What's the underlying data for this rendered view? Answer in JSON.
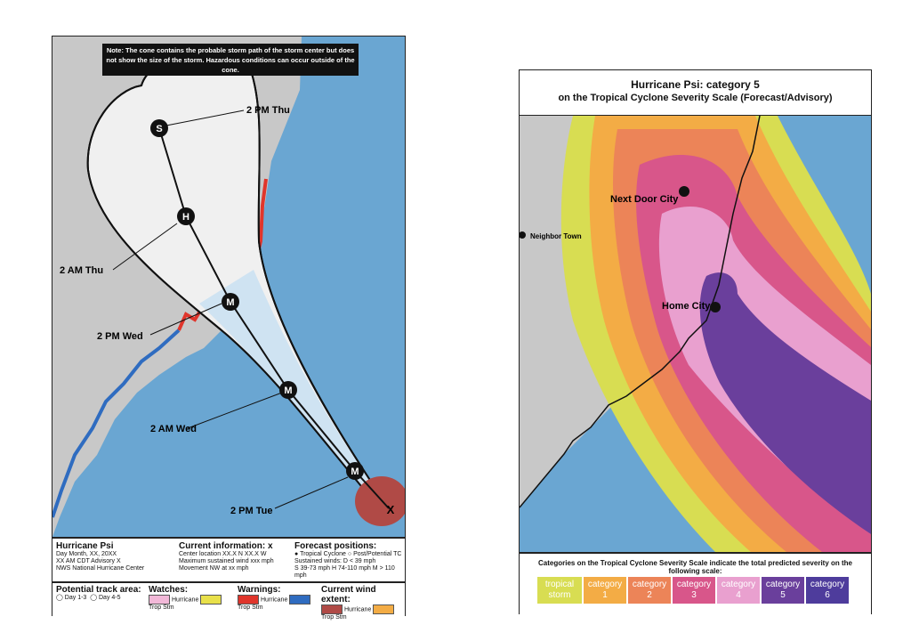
{
  "left_map": {
    "note": "Note: The cone contains the probable storm path of the storm center but does not show the size of the storm. Hazardous conditions can occur outside of the cone.",
    "track_labels": [
      "2 PM Thu",
      "2 AM Thu",
      "2 PM Wed",
      "2 AM Wed",
      "2 PM Tue"
    ],
    "storm_markers": [
      "S",
      "H",
      "M",
      "M",
      "M"
    ],
    "current_position_marker": "X",
    "legend": {
      "storm_name": "Hurricane Psi",
      "advisory_lines": [
        "Day Month, XX, 20XX",
        "XX AM CDT Advisory X",
        "NWS National Hurricane Center"
      ],
      "current_info_title": "Current information: x",
      "current_info_lines": [
        "Center location XX.X N XX.X W",
        "Maximum sustained wind xxx mph",
        "Movement NW at xx mph"
      ],
      "forecast_title": "Forecast positions:",
      "forecast_items": [
        "Tropical Cyclone",
        "Post/Potential TC"
      ],
      "forecast_lines": [
        "Sustained winds:    D < 39 mph",
        "S 39-73 mph  H 74-110 mph  M > 110 mph"
      ],
      "track_area_title": "Potential track area:",
      "track_area_items": [
        "Day 1-3",
        "Day 4-5"
      ],
      "watches_title": "Watches:",
      "watches_items": [
        "Hurricane",
        "Trop Stm"
      ],
      "warnings_title": "Warnings:",
      "warnings_items": [
        "Hurricane",
        "Trop Stm"
      ],
      "wind_title": "Current wind extent:",
      "wind_items": [
        "Hurricane",
        "Trop Stm"
      ]
    }
  },
  "right_map": {
    "title_line1": "Hurricane Psi: category 5",
    "title_line2": "on the Tropical Cyclone Severity Scale (Forecast/Advisory)",
    "cities": [
      "Next Door City",
      "Home City",
      "Neighbor Town"
    ],
    "scale_caption": "Categories on the Tropical Cyclone Severity Scale indicate the total predicted severity on the following scale:",
    "scale": [
      {
        "line1": "tropical",
        "line2": "storm",
        "color": "#d8dd52"
      },
      {
        "line1": "category",
        "line2": "1",
        "color": "#f3ac45"
      },
      {
        "line1": "category",
        "line2": "2",
        "color": "#ec8458"
      },
      {
        "line1": "category",
        "line2": "3",
        "color": "#d8568a"
      },
      {
        "line1": "category",
        "line2": "4",
        "color": "#e9a0cf"
      },
      {
        "line1": "category",
        "line2": "5",
        "color": "#6a3f9c"
      },
      {
        "line1": "category",
        "line2": "6",
        "color": "#4e3c9c"
      }
    ]
  },
  "colors": {
    "ocean": "#6aa6d2",
    "land": "#c8c8c8",
    "cone_day13": "#f0f0f0",
    "cone_day45": "#cfe3f2",
    "warning_hurricane": "#e0352b",
    "warning_trop": "#2f6cc0",
    "wind_hurricane": "#b04a46",
    "watch_hurricane": "#f2b8d8",
    "watch_trop": "#e8e04a"
  }
}
